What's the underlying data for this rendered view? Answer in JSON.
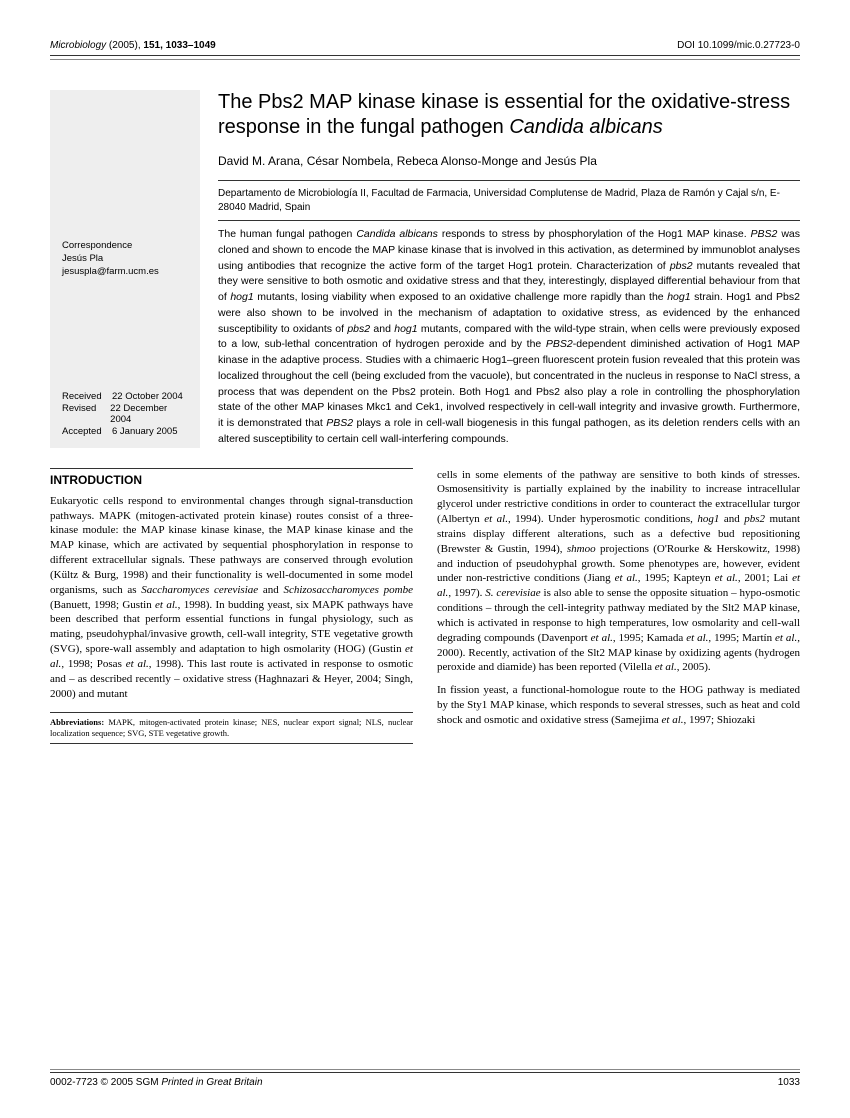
{
  "header": {
    "journal": "Microbiology",
    "year": "(2005),",
    "volpages": "151, 1033–1049",
    "doi": "DOI 10.1099/mic.0.27723-0"
  },
  "sidebar": {
    "corr_label": "Correspondence",
    "corr_name": "Jesús Pla",
    "corr_email": "jesuspla@farm.ucm.es",
    "dates": {
      "received_label": "Received",
      "received": "22 October 2004",
      "revised_label": "Revised",
      "revised": "22 December 2004",
      "accepted_label": "Accepted",
      "accepted": "6 January 2005"
    }
  },
  "title": {
    "line1": "The Pbs2 MAP kinase kinase is essential for the oxidative-stress response in the fungal pathogen ",
    "italic": "Candida albicans"
  },
  "authors": "David M. Arana, César Nombela, Rebeca Alonso-Monge and Jesús Pla",
  "affiliation": "Departamento de Microbiología II, Facultad de Farmacia, Universidad Complutense de Madrid, Plaza de Ramón y Cajal s/n, E-28040 Madrid, Spain",
  "abstract": "The human fungal pathogen <i>Candida albicans</i> responds to stress by phosphorylation of the Hog1 MAP kinase. <i>PBS2</i> was cloned and shown to encode the MAP kinase kinase that is involved in this activation, as determined by immunoblot analyses using antibodies that recognize the active form of the target Hog1 protein. Characterization of <i>pbs2</i> mutants revealed that they were sensitive to both osmotic and oxidative stress and that they, interestingly, displayed differential behaviour from that of <i>hog1</i> mutants, losing viability when exposed to an oxidative challenge more rapidly than the <i>hog1</i> strain. Hog1 and Pbs2 were also shown to be involved in the mechanism of adaptation to oxidative stress, as evidenced by the enhanced susceptibility to oxidants of <i>pbs2</i> and <i>hog1</i> mutants, compared with the wild-type strain, when cells were previously exposed to a low, sub-lethal concentration of hydrogen peroxide and by the <i>PBS2</i>-dependent diminished activation of Hog1 MAP kinase in the adaptive process. Studies with a chimaeric Hog1–green fluorescent protein fusion revealed that this protein was localized throughout the cell (being excluded from the vacuole), but concentrated in the nucleus in response to NaCl stress, a process that was dependent on the Pbs2 protein. Both Hog1 and Pbs2 also play a role in controlling the phosphorylation state of the other MAP kinases Mkc1 and Cek1, involved respectively in cell-wall integrity and invasive growth. Furthermore, it is demonstrated that <i>PBS2</i> plays a role in cell-wall biogenesis in this fungal pathogen, as its deletion renders cells with an altered susceptibility to certain cell wall-interfering compounds.",
  "intro": {
    "heading": "INTRODUCTION",
    "col1": "Eukaryotic cells respond to environmental changes through signal-transduction pathways. MAPK (mitogen-activated protein kinase) routes consist of a three-kinase module: the MAP kinase kinase kinase, the MAP kinase kinase and the MAP kinase, which are activated by sequential phosphorylation in response to different extracellular signals. These pathways are conserved through evolution (Kültz & Burg, 1998) and their functionality is well-documented in some model organisms, such as <i>Saccharomyces cerevisiae</i> and <i>Schizosaccharomyces pombe</i> (Banuett, 1998; Gustin <i>et al.</i>, 1998). In budding yeast, six MAPK pathways have been described that perform essential functions in fungal physiology, such as mating, pseudohyphal/invasive growth, cell-wall integrity, STE vegetative growth (SVG), spore-wall assembly and adaptation to high osmolarity (HOG) (Gustin <i>et al.</i>, 1998; Posas <i>et al.</i>, 1998). This last route is activated in response to osmotic and – as described recently – oxidative stress (Haghnazari & Heyer, 2004; Singh, 2000) and mutant",
    "col2_p1": "cells in some elements of the pathway are sensitive to both kinds of stresses. Osmosensitivity is partially explained by the inability to increase intracellular glycerol under restrictive conditions in order to counteract the extracellular turgor (Albertyn <i>et al.</i>, 1994). Under hyperosmotic conditions, <i>hog1</i> and <i>pbs2</i> mutant strains display different alterations, such as a defective bud repositioning (Brewster & Gustin, 1994), <i>shmoo</i> projections (O'Rourke & Herskowitz, 1998) and induction of pseudohyphal growth. Some phenotypes are, however, evident under non-restrictive conditions (Jiang <i>et al.</i>, 1995; Kapteyn <i>et al.</i>, 2001; Lai <i>et al.</i>, 1997). <i>S. cerevisiae</i> is also able to sense the opposite situation – hypo-osmotic conditions – through the cell-integrity pathway mediated by the Slt2 MAP kinase, which is activated in response to high temperatures, low osmolarity and cell-wall degrading compounds (Davenport <i>et al.</i>, 1995; Kamada <i>et al.</i>, 1995; Martín <i>et al.</i>, 2000). Recently, activation of the Slt2 MAP kinase by oxidizing agents (hydrogen peroxide and diamide) has been reported (Vilella <i>et al.</i>, 2005).",
    "col2_p2": "In fission yeast, a functional-homologue route to the HOG pathway is mediated by the Sty1 MAP kinase, which responds to several stresses, such as heat and cold shock and osmotic and oxidative stress (Samejima <i>et al.</i>, 1997; Shiozaki"
  },
  "abbrev": {
    "label": "Abbreviations:",
    "text": "MAPK, mitogen-activated protein kinase; NES, nuclear export signal; NLS, nuclear localization sequence; SVG, STE vegetative growth."
  },
  "footer": {
    "left1": "0002-7723",
    "copyright": "© 2005 SGM",
    "printed": "Printed in Great Britain",
    "page": "1033"
  }
}
